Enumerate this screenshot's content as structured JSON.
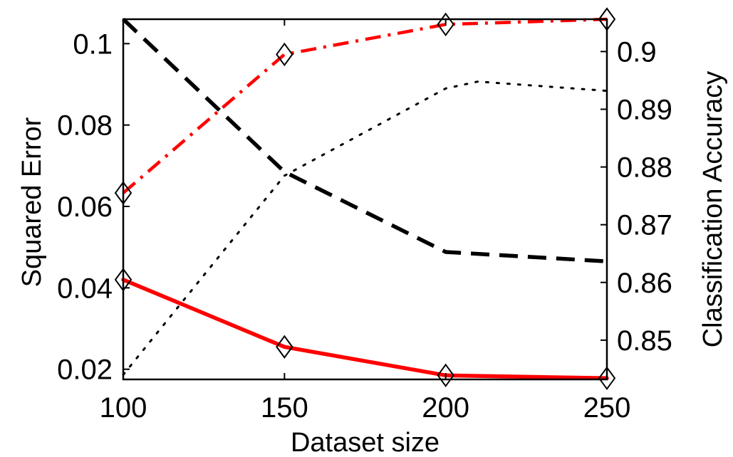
{
  "chart_data": {
    "type": "line",
    "xlabel": "Dataset size",
    "ylabel_left": "Squared Error",
    "ylabel_right": "Classification Accuracy",
    "x": [
      100,
      150,
      200,
      250
    ],
    "x_ticks": [
      "100",
      "150",
      "200",
      "250"
    ],
    "xlim": [
      100,
      250
    ],
    "ylim_left": [
      0.0175,
      0.106
    ],
    "ylim_right": [
      0.8432,
      0.9056
    ],
    "y_ticks_left": [
      "0.02",
      "0.04",
      "0.06",
      "0.08",
      "0.1"
    ],
    "y_ticks_right": [
      "0.85",
      "0.86",
      "0.87",
      "0.88",
      "0.89",
      "0.9"
    ],
    "grid": false,
    "series": [
      {
        "axis": "left",
        "x": [
          100,
          150,
          200,
          250
        ],
        "values": [
          0.042,
          0.0255,
          0.0185,
          0.0178
        ],
        "color": "#ff0000",
        "style": "solid",
        "markers": "diamond"
      },
      {
        "axis": "left",
        "x": [
          100,
          150,
          200,
          250
        ],
        "values": [
          0.106,
          0.0685,
          0.0488,
          0.0465
        ],
        "color": "#000000",
        "style": "dashed",
        "markers": "none"
      },
      {
        "axis": "right",
        "x": [
          100,
          150,
          200,
          250
        ],
        "values": [
          0.8755,
          0.8995,
          0.9047,
          0.9056
        ],
        "color": "#ff0000",
        "style": "dashdot",
        "markers": "diamond"
      },
      {
        "axis": "right",
        "x": [
          100,
          150,
          200,
          210,
          250
        ],
        "values": [
          0.844,
          0.8785,
          0.8936,
          0.8948,
          0.8932
        ],
        "color": "#000000",
        "style": "dotted",
        "markers": "none"
      }
    ]
  }
}
